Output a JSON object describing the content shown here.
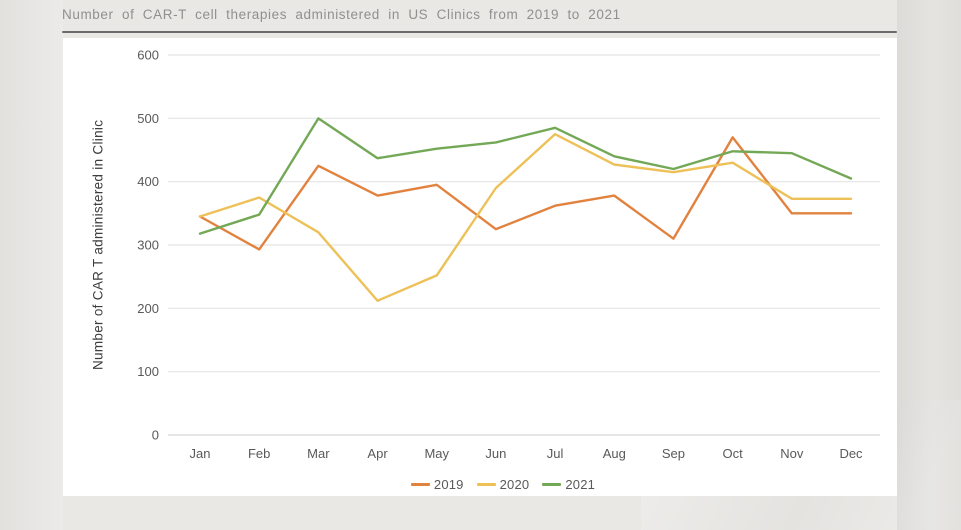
{
  "page": {
    "title": "Number of CAR-T cell therapies administered in US Clinics from 2019 to 2021"
  },
  "chart_data": {
    "type": "line",
    "title": "Number of CAR-T cell therapies administered in US Clinics from 2019 to 2021",
    "xlabel": "",
    "ylabel": "Number of CAR T administered in Clinic",
    "ylim": [
      0,
      600
    ],
    "yticks": [
      0,
      100,
      200,
      300,
      400,
      500,
      600
    ],
    "grid": true,
    "legend_position": "bottom",
    "categories": [
      "Jan",
      "Feb",
      "Mar",
      "Apr",
      "May",
      "Jun",
      "Jul",
      "Aug",
      "Sep",
      "Oct",
      "Nov",
      "Dec"
    ],
    "series": [
      {
        "name": "2019",
        "color": "#e2823f",
        "values": [
          345,
          293,
          425,
          378,
          395,
          325,
          362,
          378,
          310,
          470,
          350,
          350
        ]
      },
      {
        "name": "2020",
        "color": "#edc158",
        "values": [
          345,
          375,
          320,
          212,
          252,
          390,
          475,
          427,
          415,
          430,
          373,
          373
        ]
      },
      {
        "name": "2021",
        "color": "#73a857",
        "values": [
          318,
          348,
          500,
          437,
          452,
          462,
          485,
          440,
          420,
          448,
          445,
          405
        ]
      }
    ]
  },
  "colors": {
    "background": "#e9e8e5",
    "card": "#ffffff",
    "gridline": "#e4e4e4",
    "baseline": "#d6d6d6",
    "axis_text": "#595959",
    "axis_title_text": "#3d3d3d",
    "page_title_text": "#8f8f8f",
    "title_rule": "#6b6b6b"
  }
}
